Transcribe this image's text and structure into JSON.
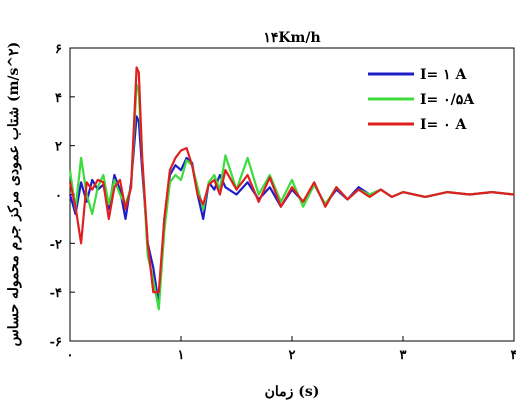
{
  "chart_data": {
    "type": "line",
    "title": "۱۴Km/h",
    "xlabel": "زمان (s)",
    "ylabel": "شتاب عمودی مرکز جرم محموله حساس (m/s^۲)",
    "xlim": [
      0,
      4.0
    ],
    "ylim": [
      -6,
      6
    ],
    "x_ticks": [
      0,
      1,
      2,
      3,
      4
    ],
    "x_tick_labels": [
      "۰",
      "۱",
      "۲",
      "۳",
      "۴"
    ],
    "y_ticks": [
      -6,
      -4,
      -2,
      0,
      2,
      4,
      6
    ],
    "y_tick_labels": [
      "-۶",
      "-۴",
      "-۲",
      "۰",
      "۲",
      "۴",
      "۶"
    ],
    "grid": false,
    "legend_position": "top-right",
    "x": [
      0.0,
      0.05,
      0.1,
      0.15,
      0.2,
      0.25,
      0.3,
      0.35,
      0.4,
      0.45,
      0.5,
      0.55,
      0.6,
      0.62,
      0.65,
      0.7,
      0.75,
      0.8,
      0.85,
      0.9,
      0.95,
      1.0,
      1.05,
      1.1,
      1.15,
      1.2,
      1.25,
      1.3,
      1.35,
      1.4,
      1.5,
      1.6,
      1.7,
      1.8,
      1.9,
      2.0,
      2.1,
      2.2,
      2.3,
      2.4,
      2.5,
      2.6,
      2.7,
      2.8,
      2.9,
      3.0,
      3.2,
      3.4,
      3.6,
      3.8,
      4.0
    ],
    "series": [
      {
        "name": "I= ۱ A",
        "color": "#1f1fc8",
        "values": [
          0.0,
          -0.8,
          0.5,
          -0.3,
          0.6,
          0.2,
          0.4,
          -0.6,
          0.8,
          0.2,
          -1.0,
          0.5,
          3.2,
          3.0,
          1.0,
          -2.0,
          -3.0,
          -4.5,
          -1.0,
          0.8,
          1.2,
          1.0,
          1.5,
          1.3,
          0.0,
          -1.0,
          0.5,
          0.2,
          0.8,
          0.3,
          0.0,
          0.5,
          -0.2,
          0.3,
          -0.5,
          0.2,
          -0.3,
          0.4,
          -0.4,
          0.2,
          -0.2,
          0.3,
          0.0,
          0.2,
          -0.1,
          0.1,
          -0.1,
          0.1,
          0.0,
          0.1,
          0.0
        ]
      },
      {
        "name": "I= ۰/۵A",
        "color": "#3cdc3c",
        "values": [
          1.0,
          -0.6,
          1.5,
          0.0,
          -0.8,
          0.3,
          0.8,
          -0.4,
          0.6,
          0.0,
          -0.4,
          0.3,
          4.5,
          4.2,
          1.5,
          -2.5,
          -3.5,
          -4.7,
          -1.5,
          0.5,
          0.8,
          0.6,
          1.4,
          1.2,
          0.3,
          -0.6,
          0.5,
          0.8,
          0.2,
          1.6,
          0.2,
          1.5,
          0.0,
          0.8,
          -0.3,
          0.6,
          -0.5,
          0.4,
          -0.4,
          0.3,
          -0.2,
          0.2,
          0.0,
          0.2,
          -0.1,
          0.1,
          -0.1,
          0.1,
          0.0,
          0.1,
          0.0
        ]
      },
      {
        "name": "I= ۰ A",
        "color": "#e01f1f",
        "values": [
          0.5,
          -0.5,
          -2.0,
          0.5,
          0.2,
          0.6,
          0.5,
          -1.0,
          0.3,
          0.6,
          -0.6,
          0.3,
          5.2,
          5.0,
          1.5,
          -2.0,
          -4.0,
          -4.0,
          -1.0,
          1.0,
          1.5,
          1.8,
          1.9,
          1.2,
          0.0,
          -0.4,
          0.4,
          0.6,
          0.0,
          1.0,
          0.2,
          0.8,
          -0.3,
          0.7,
          -0.5,
          0.3,
          -0.3,
          0.5,
          -0.5,
          0.3,
          -0.2,
          0.2,
          -0.1,
          0.2,
          -0.1,
          0.1,
          -0.1,
          0.1,
          0.0,
          0.1,
          0.0
        ]
      }
    ]
  }
}
